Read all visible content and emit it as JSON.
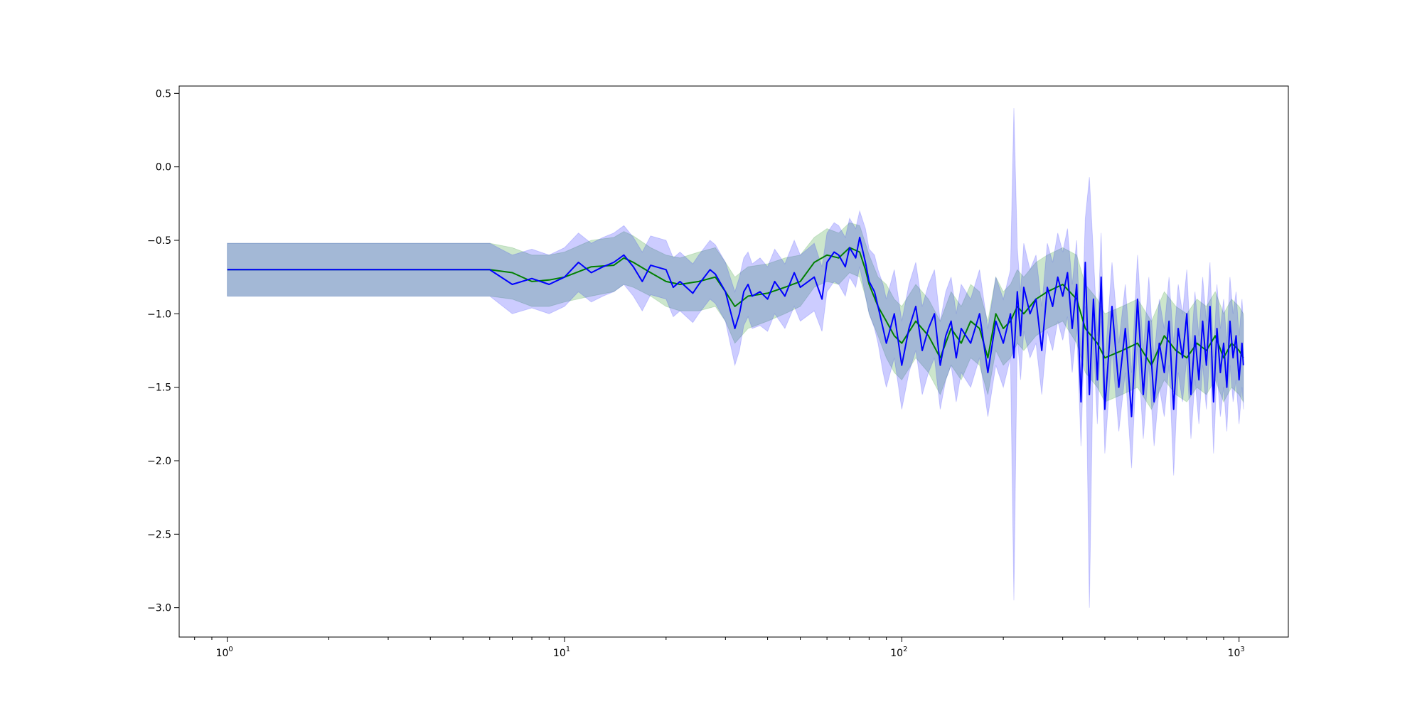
{
  "chart_data": {
    "type": "line",
    "title": "",
    "xlabel": "",
    "ylabel": "",
    "x_scale": "log",
    "xlim": [
      0.72,
      1400
    ],
    "ylim": [
      -3.2,
      0.55
    ],
    "grid": false,
    "legend": null,
    "colors": {
      "green_line": "#008000",
      "blue_line": "#0000ff",
      "green_band": "#008000",
      "blue_band": "#0000ff",
      "band_opacity": 0.2
    },
    "x_ticks": [
      {
        "value": 1,
        "base": "10",
        "exp": "0"
      },
      {
        "value": 10,
        "base": "10",
        "exp": "1"
      },
      {
        "value": 100,
        "base": "10",
        "exp": "2"
      },
      {
        "value": 1000,
        "base": "10",
        "exp": "3"
      }
    ],
    "y_ticks": [
      {
        "value": 0.5,
        "label": "0.5"
      },
      {
        "value": 0.0,
        "label": "0.0"
      },
      {
        "value": -0.5,
        "label": "−0.5"
      },
      {
        "value": -1.0,
        "label": "−1.0"
      },
      {
        "value": -1.5,
        "label": "−1.5"
      },
      {
        "value": -2.0,
        "label": "−2.0"
      },
      {
        "value": -2.5,
        "label": "−2.5"
      },
      {
        "value": -3.0,
        "label": "−3.0"
      }
    ],
    "series": [
      {
        "color": "green",
        "x": [
          1,
          6,
          7,
          8,
          9,
          10,
          12,
          14,
          15,
          16,
          18,
          20,
          22,
          25,
          28,
          30,
          32,
          35,
          40,
          45,
          50,
          55,
          60,
          65,
          70,
          75,
          78,
          80,
          85,
          90,
          95,
          100,
          110,
          120,
          130,
          140,
          150,
          160,
          170,
          180,
          190,
          200,
          210,
          220,
          230,
          250,
          270,
          300,
          330,
          350,
          380,
          400,
          450,
          500,
          550,
          600,
          650,
          700,
          750,
          800,
          850,
          900,
          950,
          1000,
          1030
        ],
        "y": [
          -0.7,
          -0.7,
          -0.72,
          -0.78,
          -0.77,
          -0.75,
          -0.68,
          -0.67,
          -0.62,
          -0.65,
          -0.72,
          -0.78,
          -0.8,
          -0.78,
          -0.75,
          -0.85,
          -0.95,
          -0.88,
          -0.86,
          -0.82,
          -0.78,
          -0.65,
          -0.6,
          -0.62,
          -0.55,
          -0.58,
          -0.7,
          -0.8,
          -0.95,
          -1.05,
          -1.15,
          -1.2,
          -1.05,
          -1.15,
          -1.3,
          -1.1,
          -1.2,
          -1.05,
          -1.1,
          -1.3,
          -1.0,
          -1.1,
          -1.05,
          -0.95,
          -1.0,
          -0.9,
          -0.85,
          -0.8,
          -0.9,
          -1.1,
          -1.2,
          -1.3,
          -1.25,
          -1.2,
          -1.35,
          -1.15,
          -1.25,
          -1.3,
          -1.2,
          -1.25,
          -1.15,
          -1.3,
          -1.2,
          -1.25,
          -1.3
        ],
        "lower": [
          -0.88,
          -0.88,
          -0.9,
          -0.95,
          -0.95,
          -0.92,
          -0.88,
          -0.85,
          -0.8,
          -0.82,
          -0.88,
          -0.95,
          -0.98,
          -0.98,
          -0.95,
          -1.05,
          -1.2,
          -1.1,
          -1.05,
          -1.0,
          -0.95,
          -0.82,
          -0.78,
          -0.8,
          -0.72,
          -0.75,
          -0.88,
          -1.0,
          -1.15,
          -1.3,
          -1.4,
          -1.45,
          -1.3,
          -1.4,
          -1.55,
          -1.35,
          -1.45,
          -1.3,
          -1.35,
          -1.55,
          -1.25,
          -1.35,
          -1.3,
          -1.2,
          -1.25,
          -1.15,
          -1.1,
          -1.05,
          -1.2,
          -1.4,
          -1.5,
          -1.6,
          -1.55,
          -1.5,
          -1.65,
          -1.45,
          -1.55,
          -1.6,
          -1.5,
          -1.55,
          -1.45,
          -1.6,
          -1.5,
          -1.55,
          -1.6
        ],
        "upper": [
          -0.52,
          -0.52,
          -0.55,
          -0.6,
          -0.6,
          -0.58,
          -0.5,
          -0.48,
          -0.44,
          -0.47,
          -0.55,
          -0.6,
          -0.62,
          -0.58,
          -0.55,
          -0.65,
          -0.75,
          -0.68,
          -0.66,
          -0.62,
          -0.6,
          -0.48,
          -0.42,
          -0.45,
          -0.38,
          -0.4,
          -0.52,
          -0.6,
          -0.75,
          -0.8,
          -0.9,
          -0.95,
          -0.8,
          -0.9,
          -1.05,
          -0.85,
          -0.95,
          -0.8,
          -0.85,
          -1.05,
          -0.75,
          -0.85,
          -0.8,
          -0.7,
          -0.75,
          -0.65,
          -0.6,
          -0.55,
          -0.6,
          -0.8,
          -0.9,
          -1.0,
          -0.95,
          -0.9,
          -1.05,
          -0.85,
          -0.95,
          -1.0,
          -0.9,
          -0.95,
          -0.85,
          -1.0,
          -0.9,
          -0.95,
          -1.0
        ]
      },
      {
        "color": "blue",
        "x": [
          1,
          6,
          7,
          8,
          9,
          10,
          11,
          12,
          13,
          14,
          15,
          16,
          17,
          18,
          20,
          21,
          22,
          24,
          25,
          27,
          28,
          30,
          32,
          33,
          34,
          35,
          36,
          38,
          40,
          42,
          45,
          48,
          50,
          55,
          58,
          60,
          63,
          65,
          68,
          70,
          73,
          75,
          78,
          80,
          83,
          85,
          88,
          90,
          95,
          100,
          105,
          110,
          115,
          120,
          125,
          130,
          135,
          140,
          145,
          150,
          160,
          170,
          180,
          190,
          200,
          210,
          215,
          220,
          225,
          230,
          240,
          250,
          260,
          270,
          280,
          290,
          300,
          310,
          320,
          330,
          340,
          350,
          360,
          370,
          380,
          390,
          400,
          420,
          440,
          460,
          480,
          500,
          520,
          540,
          560,
          580,
          600,
          620,
          640,
          660,
          680,
          700,
          720,
          740,
          760,
          780,
          800,
          820,
          840,
          860,
          880,
          900,
          920,
          940,
          960,
          980,
          1000,
          1020,
          1030
        ],
        "y": [
          -0.7,
          -0.7,
          -0.8,
          -0.76,
          -0.8,
          -0.75,
          -0.65,
          -0.72,
          -0.68,
          -0.65,
          -0.6,
          -0.68,
          -0.78,
          -0.67,
          -0.7,
          -0.82,
          -0.78,
          -0.86,
          -0.8,
          -0.7,
          -0.73,
          -0.85,
          -1.1,
          -1.0,
          -0.85,
          -0.8,
          -0.88,
          -0.85,
          -0.9,
          -0.78,
          -0.88,
          -0.72,
          -0.82,
          -0.75,
          -0.9,
          -0.65,
          -0.58,
          -0.6,
          -0.68,
          -0.55,
          -0.62,
          -0.48,
          -0.65,
          -0.78,
          -0.85,
          -0.95,
          -1.1,
          -1.2,
          -1.0,
          -1.35,
          -1.1,
          -0.95,
          -1.25,
          -1.1,
          -1.0,
          -1.35,
          -1.15,
          -1.05,
          -1.3,
          -1.1,
          -1.2,
          -1.0,
          -1.4,
          -1.05,
          -1.2,
          -1.0,
          -1.3,
          -0.85,
          -1.15,
          -0.82,
          -1.0,
          -0.9,
          -1.25,
          -0.82,
          -0.95,
          -0.75,
          -0.88,
          -0.72,
          -1.1,
          -0.8,
          -1.6,
          -0.65,
          -1.55,
          -0.9,
          -1.45,
          -0.75,
          -1.65,
          -0.95,
          -1.5,
          -1.1,
          -1.7,
          -0.9,
          -1.55,
          -1.05,
          -1.6,
          -1.2,
          -1.4,
          -1.05,
          -1.65,
          -1.1,
          -1.3,
          -1.0,
          -1.55,
          -1.15,
          -1.45,
          -1.05,
          -1.35,
          -0.95,
          -1.6,
          -1.1,
          -1.4,
          -1.2,
          -1.5,
          -1.05,
          -1.3,
          -1.15,
          -1.45,
          -1.2,
          -1.35
        ],
        "lower": [
          -0.88,
          -0.88,
          -1.0,
          -0.96,
          -1.0,
          -0.95,
          -0.85,
          -0.92,
          -0.88,
          -0.85,
          -0.8,
          -0.88,
          -0.98,
          -0.87,
          -0.9,
          -1.02,
          -0.98,
          -1.06,
          -1.0,
          -0.9,
          -0.93,
          -1.05,
          -1.35,
          -1.25,
          -1.08,
          -1.02,
          -1.1,
          -1.08,
          -1.12,
          -1.0,
          -1.1,
          -0.95,
          -1.05,
          -0.98,
          -1.12,
          -0.85,
          -0.78,
          -0.8,
          -0.88,
          -0.75,
          -0.82,
          -0.68,
          -0.88,
          -1.0,
          -1.1,
          -1.2,
          -1.4,
          -1.5,
          -1.3,
          -1.65,
          -1.4,
          -1.25,
          -1.55,
          -1.4,
          -1.3,
          -1.65,
          -1.45,
          -1.35,
          -1.6,
          -1.4,
          -1.5,
          -1.3,
          -1.7,
          -1.35,
          -1.5,
          -1.3,
          -2.95,
          -1.15,
          -1.45,
          -1.12,
          -1.3,
          -1.2,
          -1.55,
          -1.12,
          -1.25,
          -1.05,
          -1.18,
          -1.02,
          -1.4,
          -1.1,
          -1.9,
          -0.95,
          -3.0,
          -1.2,
          -1.75,
          -1.05,
          -1.95,
          -1.25,
          -1.8,
          -1.4,
          -2.05,
          -1.2,
          -1.85,
          -1.35,
          -1.9,
          -1.5,
          -1.7,
          -1.35,
          -2.1,
          -1.4,
          -1.6,
          -1.3,
          -1.85,
          -1.45,
          -1.75,
          -1.35,
          -1.65,
          -1.25,
          -1.95,
          -1.4,
          -1.7,
          -1.5,
          -1.8,
          -1.35,
          -1.6,
          -1.45,
          -1.75,
          -1.5,
          -1.65
        ],
        "upper": [
          -0.52,
          -0.52,
          -0.6,
          -0.56,
          -0.6,
          -0.55,
          -0.45,
          -0.52,
          -0.48,
          -0.45,
          -0.4,
          -0.48,
          -0.58,
          -0.47,
          -0.5,
          -0.62,
          -0.58,
          -0.66,
          -0.6,
          -0.5,
          -0.53,
          -0.65,
          -0.85,
          -0.75,
          -0.62,
          -0.58,
          -0.66,
          -0.62,
          -0.68,
          -0.56,
          -0.66,
          -0.5,
          -0.6,
          -0.52,
          -0.68,
          -0.45,
          -0.38,
          -0.4,
          -0.48,
          -0.35,
          -0.42,
          -0.3,
          -0.42,
          -0.56,
          -0.6,
          -0.7,
          -0.8,
          -0.9,
          -0.7,
          -1.05,
          -0.8,
          -0.65,
          -0.95,
          -0.8,
          -0.7,
          -1.05,
          -0.85,
          -0.75,
          -1.0,
          -0.8,
          -0.9,
          -0.7,
          -1.1,
          -0.75,
          -0.9,
          -0.7,
          0.4,
          -0.55,
          -0.85,
          -0.52,
          -0.7,
          -0.6,
          -0.95,
          -0.52,
          -0.65,
          -0.45,
          -0.58,
          -0.42,
          -0.8,
          -0.5,
          -1.3,
          -0.35,
          -0.07,
          -0.6,
          -1.15,
          -0.45,
          -1.35,
          -0.65,
          -1.2,
          -0.8,
          -1.4,
          -0.6,
          -1.25,
          -0.75,
          -1.3,
          -0.9,
          -1.1,
          -0.75,
          -1.2,
          -0.8,
          -1.0,
          -0.7,
          -1.25,
          -0.85,
          -1.15,
          -0.75,
          -1.05,
          -0.65,
          -1.3,
          -0.8,
          -1.1,
          -0.9,
          -1.2,
          -0.75,
          -1.0,
          -0.85,
          -1.15,
          -0.9,
          -1.05
        ]
      }
    ]
  }
}
